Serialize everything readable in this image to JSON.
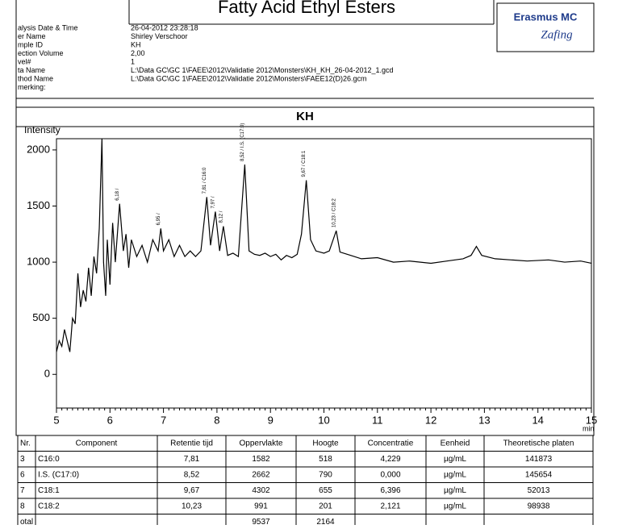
{
  "header": {
    "title": "Fatty Acid Ethyl Esters",
    "logo": "Erasmus MC",
    "logo_script": "Zafing",
    "info": [
      [
        "alysis Date & Time",
        "26-04-2012 23:28:18"
      ],
      [
        "er Name",
        "Shirley Verschoor"
      ],
      [
        "mple ID",
        "KH"
      ],
      [
        "ection Volume",
        "2,00"
      ],
      [
        "vel#",
        "1"
      ],
      [
        "ta Name",
        "L:\\Data GC\\GC 1\\FAEE\\2012\\Validatie 2012\\Monsters\\KH_KH_26-04-2012_1.gcd"
      ],
      [
        "thod Name",
        "L:\\Data GC\\GC 1\\FAEE\\2012\\Validatie 2012\\Monsters\\FAEE12(D)26.gcm"
      ],
      [
        "merking:"
      ]
    ]
  },
  "chart_data": {
    "type": "line",
    "title": "KH",
    "y_label": "Intensity",
    "x_label": "min",
    "x": [
      5.0,
      5.05,
      5.1,
      5.15,
      5.2,
      5.25,
      5.3,
      5.35,
      5.4,
      5.45,
      5.5,
      5.55,
      5.6,
      5.65,
      5.7,
      5.75,
      5.8,
      5.85,
      5.88,
      5.92,
      5.95,
      6.0,
      6.05,
      6.1,
      6.18,
      6.25,
      6.3,
      6.35,
      6.4,
      6.5,
      6.6,
      6.7,
      6.8,
      6.9,
      6.95,
      7.0,
      7.1,
      7.2,
      7.3,
      7.4,
      7.5,
      7.6,
      7.7,
      7.81,
      7.88,
      7.97,
      8.05,
      8.12,
      8.2,
      8.3,
      8.4,
      8.52,
      8.6,
      8.7,
      8.8,
      8.9,
      9.0,
      9.1,
      9.2,
      9.3,
      9.4,
      9.5,
      9.58,
      9.67,
      9.75,
      9.85,
      10.0,
      10.1,
      10.23,
      10.3,
      10.5,
      10.7,
      11.0,
      11.3,
      11.6,
      12.0,
      12.3,
      12.6,
      12.75,
      12.85,
      12.95,
      13.2,
      13.5,
      13.8,
      14.2,
      14.5,
      14.8,
      15.0
    ],
    "series": [
      {
        "color": "#000000",
        "values": [
          200,
          300,
          250,
          400,
          300,
          200,
          500,
          450,
          900,
          600,
          750,
          650,
          950,
          700,
          1050,
          900,
          1300,
          2100,
          1000,
          700,
          1200,
          800,
          1350,
          1000,
          1520,
          1100,
          1250,
          950,
          1200,
          1050,
          1150,
          1000,
          1200,
          1100,
          1300,
          1100,
          1200,
          1050,
          1150,
          1050,
          1100,
          1050,
          1100,
          1580,
          1150,
          1450,
          1100,
          1320,
          1060,
          1080,
          1050,
          1870,
          1100,
          1070,
          1060,
          1080,
          1050,
          1070,
          1020,
          1060,
          1040,
          1070,
          1250,
          1730,
          1200,
          1100,
          1080,
          1100,
          1280,
          1090,
          1060,
          1030,
          1040,
          1000,
          1010,
          990,
          1010,
          1030,
          1060,
          1140,
          1060,
          1030,
          1020,
          1010,
          1020,
          1000,
          1010,
          990
        ]
      }
    ],
    "annotations": [
      {
        "text": "6,18 /",
        "x": 6.18
      },
      {
        "text": "6,95 /",
        "x": 6.95
      },
      {
        "text": "7,81 / C16:0",
        "x": 7.81
      },
      {
        "text": "7,97 /",
        "x": 7.97
      },
      {
        "text": "8,12 /",
        "x": 8.12
      },
      {
        "text": "8,52 / I.S. (C17:0)",
        "x": 8.52
      },
      {
        "text": "9,67 / C18:1",
        "x": 9.67
      },
      {
        "text": "10,23 / C18:2",
        "x": 10.23
      }
    ],
    "xlim": [
      5,
      15
    ],
    "xticks": [
      5,
      6,
      7,
      8,
      9,
      10,
      11,
      12,
      13,
      14,
      15
    ],
    "ylim": [
      -300,
      2100
    ],
    "yticks": [
      0,
      500,
      1000,
      1500,
      2000
    ]
  },
  "table": {
    "columns": [
      "Nr.",
      "Component",
      "Retentie tijd",
      "Oppervlakte",
      "Hoogte",
      "Concentratie",
      "Eenheid",
      "Theoretische platen"
    ],
    "rows": [
      [
        "3",
        "C16:0",
        "7,81",
        "1582",
        "518",
        "4,229",
        "µg/mL",
        "141873"
      ],
      [
        "6",
        "I.S. (C17:0)",
        "8,52",
        "2662",
        "790",
        "0,000",
        "µg/mL",
        "145654"
      ],
      [
        "7",
        "C18:1",
        "9,67",
        "4302",
        "655",
        "6,396",
        "µg/mL",
        "52013"
      ],
      [
        "8",
        "C18:2",
        "10,23",
        "991",
        "201",
        "2,121",
        "µg/mL",
        "98938"
      ]
    ],
    "total": {
      "label": "otal",
      "area": "9537",
      "height": "2164"
    }
  }
}
